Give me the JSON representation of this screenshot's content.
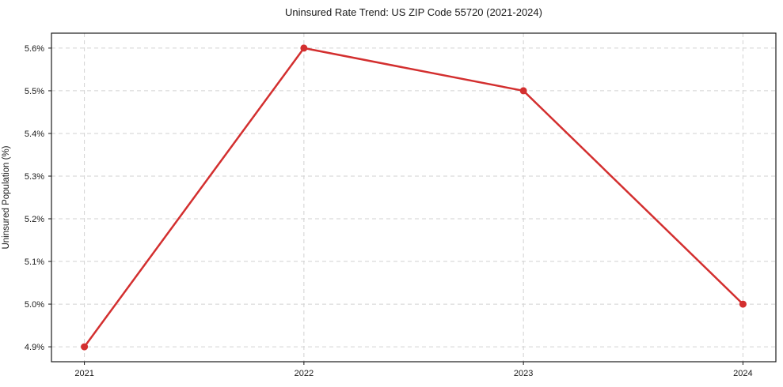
{
  "chart_data": {
    "type": "line",
    "title": "Uninsured Rate Trend: US ZIP Code 55720 (2021-2024)",
    "xlabel": "",
    "ylabel": "Uninsured Population (%)",
    "x": [
      2021,
      2022,
      2023,
      2024
    ],
    "values": [
      4.9,
      5.6,
      5.5,
      5.0
    ],
    "xtick_labels": [
      "2021",
      "2022",
      "2023",
      "2024"
    ],
    "ytick_values": [
      4.9,
      5.0,
      5.1,
      5.2,
      5.3,
      5.4,
      5.5,
      5.6
    ],
    "ytick_labels": [
      "4.9%",
      "5.0%",
      "5.1%",
      "5.2%",
      "5.3%",
      "5.4%",
      "5.5%",
      "5.6%"
    ],
    "xlim": [
      2020.85,
      2024.15
    ],
    "ylim": [
      4.865,
      5.635
    ],
    "grid": true,
    "legend_position": "none",
    "colors": {
      "line": "#d32f2f",
      "marker": "#d32f2f",
      "grid": "#d2d2d2",
      "spine": "#1a1a1a",
      "background": "#ffffff"
    }
  }
}
